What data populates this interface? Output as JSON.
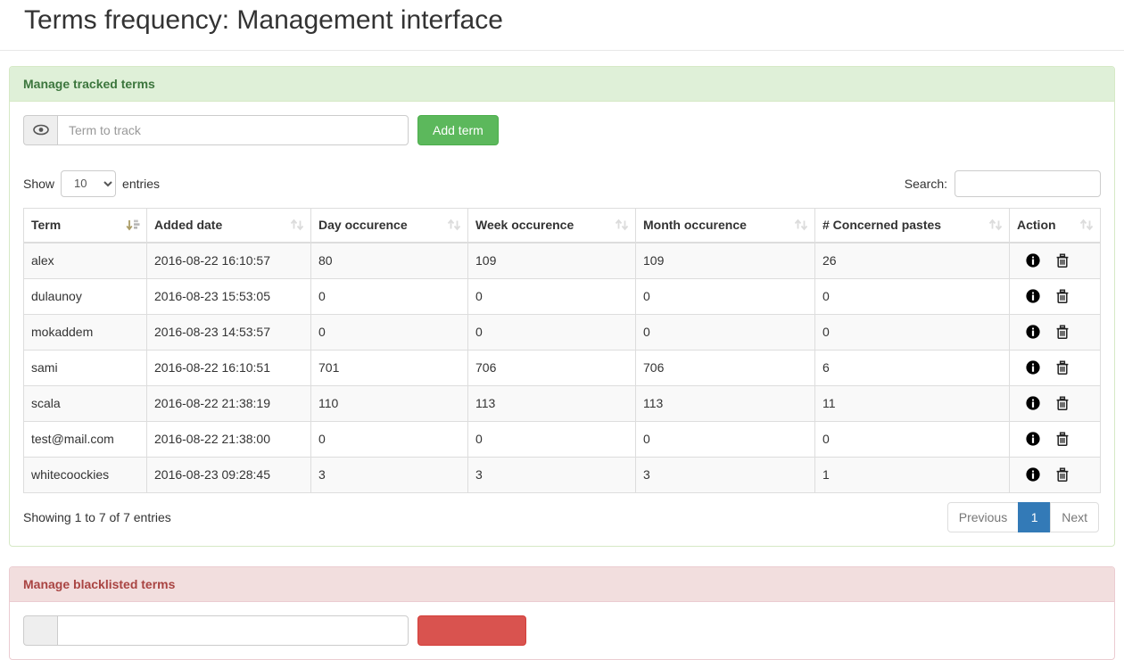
{
  "page": {
    "title": "Terms frequency: Management interface"
  },
  "colors": {
    "success_header_bg": "#dff0d8",
    "success_header_text": "#3c763d",
    "danger_header_bg": "#f2dede",
    "danger_header_text": "#a94442",
    "add_button": "#5cb85c",
    "blacklist_button": "#d9534f",
    "pagination_active": "#337ab7",
    "stripe_row": "#f9f9f9"
  },
  "icons": {
    "addon": "eye-icon",
    "row_info": "info-circle-icon",
    "row_delete": "trash-icon",
    "sorted": "sort-ascending-icon",
    "unsorted": "sort-both-icon"
  },
  "tracked_panel": {
    "title": "Manage tracked terms",
    "input_placeholder": "Term to track",
    "add_button_label": "Add term",
    "show_label": "Show",
    "entries_label": "entries",
    "page_length": "10",
    "search_label": "Search:",
    "search_value": "",
    "table": {
      "columns": [
        "Term",
        "Added date",
        "Day occurence",
        "Week occurence",
        "Month occurence",
        "# Concerned pastes",
        "Action"
      ],
      "rows": [
        {
          "term": "alex",
          "added": "2016-08-22 16:10:57",
          "day": "80",
          "week": "109",
          "month": "109",
          "pastes": "26"
        },
        {
          "term": "dulaunoy",
          "added": "2016-08-23 15:53:05",
          "day": "0",
          "week": "0",
          "month": "0",
          "pastes": "0"
        },
        {
          "term": "mokaddem",
          "added": "2016-08-23 14:53:57",
          "day": "0",
          "week": "0",
          "month": "0",
          "pastes": "0"
        },
        {
          "term": "sami",
          "added": "2016-08-22 16:10:51",
          "day": "701",
          "week": "706",
          "month": "706",
          "pastes": "6"
        },
        {
          "term": "scala",
          "added": "2016-08-22 21:38:19",
          "day": "110",
          "week": "113",
          "month": "113",
          "pastes": "11"
        },
        {
          "term": "test@mail.com",
          "added": "2016-08-22 21:38:00",
          "day": "0",
          "week": "0",
          "month": "0",
          "pastes": "0"
        },
        {
          "term": "whitecoockies",
          "added": "2016-08-23 09:28:45",
          "day": "3",
          "week": "3",
          "month": "3",
          "pastes": "1"
        }
      ]
    },
    "footer": {
      "info": "Showing 1 to 7 of 7 entries",
      "pagination": {
        "previous": "Previous",
        "current": "1",
        "next": "Next"
      }
    }
  },
  "blacklist_panel": {
    "title": "Manage blacklisted terms"
  }
}
